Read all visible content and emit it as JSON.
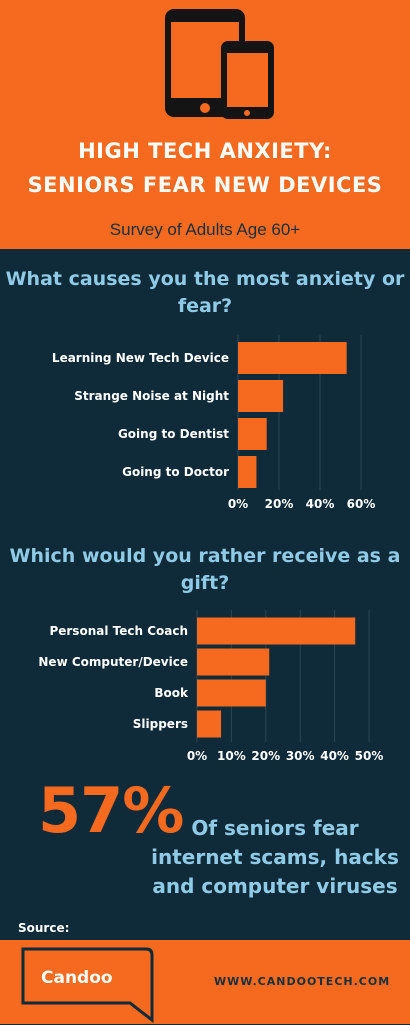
{
  "header": {
    "title_line1": "HIGH TECH ANXIETY:",
    "title_line2": "SENIORS FEAR NEW DEVICES",
    "subtitle": "Survey of Adults Age 60+",
    "icon": "tablet-and-phone-icon"
  },
  "colors": {
    "orange": "#f56a1f",
    "navy": "#0f2a38",
    "light_blue": "#8fcbe6"
  },
  "chart_data": [
    {
      "type": "bar",
      "orientation": "horizontal",
      "title": "What causes you the most anxiety or fear?",
      "categories": [
        "Learning New Tech Device",
        "Strange Noise at Night",
        "Going to Dentist",
        "Going to Doctor"
      ],
      "values": [
        53,
        22,
        14,
        9
      ],
      "unit": "%",
      "xlim": [
        0,
        60
      ],
      "ticks": [
        "0%",
        "20%",
        "40%",
        "60%"
      ],
      "grid": true
    },
    {
      "type": "bar",
      "orientation": "horizontal",
      "title": "Which would you rather receive as a gift?",
      "categories": [
        "Personal Tech Coach",
        "New Computer/Device",
        "Book",
        "Slippers"
      ],
      "values": [
        46,
        21,
        20,
        7
      ],
      "unit": "%",
      "xlim": [
        0,
        50
      ],
      "ticks": [
        "0%",
        "10%",
        "20%",
        "30%",
        "40%",
        "50%"
      ],
      "grid": true
    }
  ],
  "stat": {
    "value": "57%",
    "text": "Of seniors fear internet scams, hacks and computer viruses"
  },
  "footer": {
    "source_label": "Source:",
    "logo_text": "Candoo",
    "url": "WWW.CANDOOTECH.COM"
  }
}
